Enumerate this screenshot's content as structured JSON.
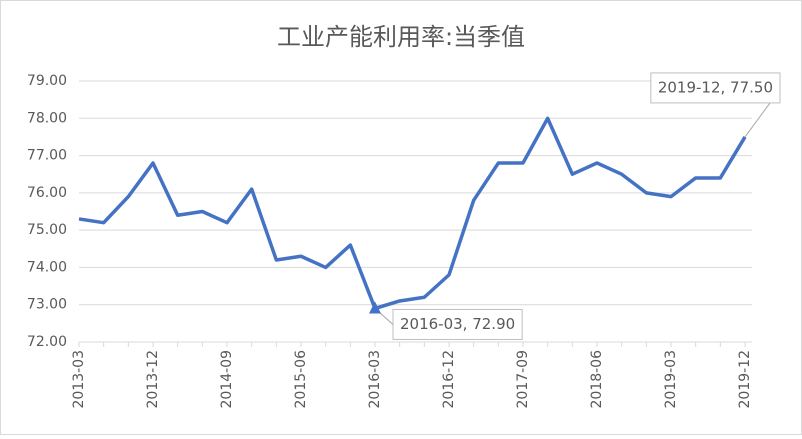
{
  "chart_data": {
    "type": "line",
    "title": "工业产能利用率:当季值",
    "categories": [
      "2013-03",
      null,
      null,
      "2013-12",
      null,
      null,
      "2014-09",
      null,
      null,
      "2015-06",
      null,
      null,
      "2016-03",
      null,
      null,
      "2016-12",
      null,
      null,
      "2017-09",
      null,
      null,
      "2018-06",
      null,
      null,
      "2019-03",
      null,
      null,
      "2019-12"
    ],
    "series": [
      {
        "name": "工业产能利用率:当季值",
        "color": "#4472c4",
        "values": [
          75.3,
          75.2,
          75.9,
          76.8,
          75.4,
          75.5,
          75.2,
          76.1,
          74.2,
          74.3,
          74.0,
          74.6,
          72.9,
          73.1,
          73.2,
          73.8,
          75.8,
          76.8,
          76.8,
          78.0,
          76.5,
          76.8,
          76.5,
          76.0,
          75.9,
          76.4,
          76.4,
          77.5
        ],
        "value_labels": [
          null,
          null,
          null,
          null,
          null,
          null,
          null,
          null,
          null,
          null,
          null,
          null,
          "2016-03, 72.90",
          null,
          null,
          null,
          null,
          null,
          null,
          null,
          null,
          null,
          null,
          null,
          null,
          null,
          null,
          "2019-12, 77.50"
        ]
      }
    ],
    "ylim": [
      72,
      79
    ],
    "yticks": [
      {
        "value": 72,
        "label": "72.00"
      },
      {
        "value": 73,
        "label": "73.00"
      },
      {
        "value": 74,
        "label": "74.00"
      },
      {
        "value": 75,
        "label": "75.00"
      },
      {
        "value": 76,
        "label": "76.00"
      },
      {
        "value": 77,
        "label": "77.00"
      },
      {
        "value": 78,
        "label": "78.00"
      },
      {
        "value": 79,
        "label": "79.00"
      }
    ],
    "grid": true
  }
}
